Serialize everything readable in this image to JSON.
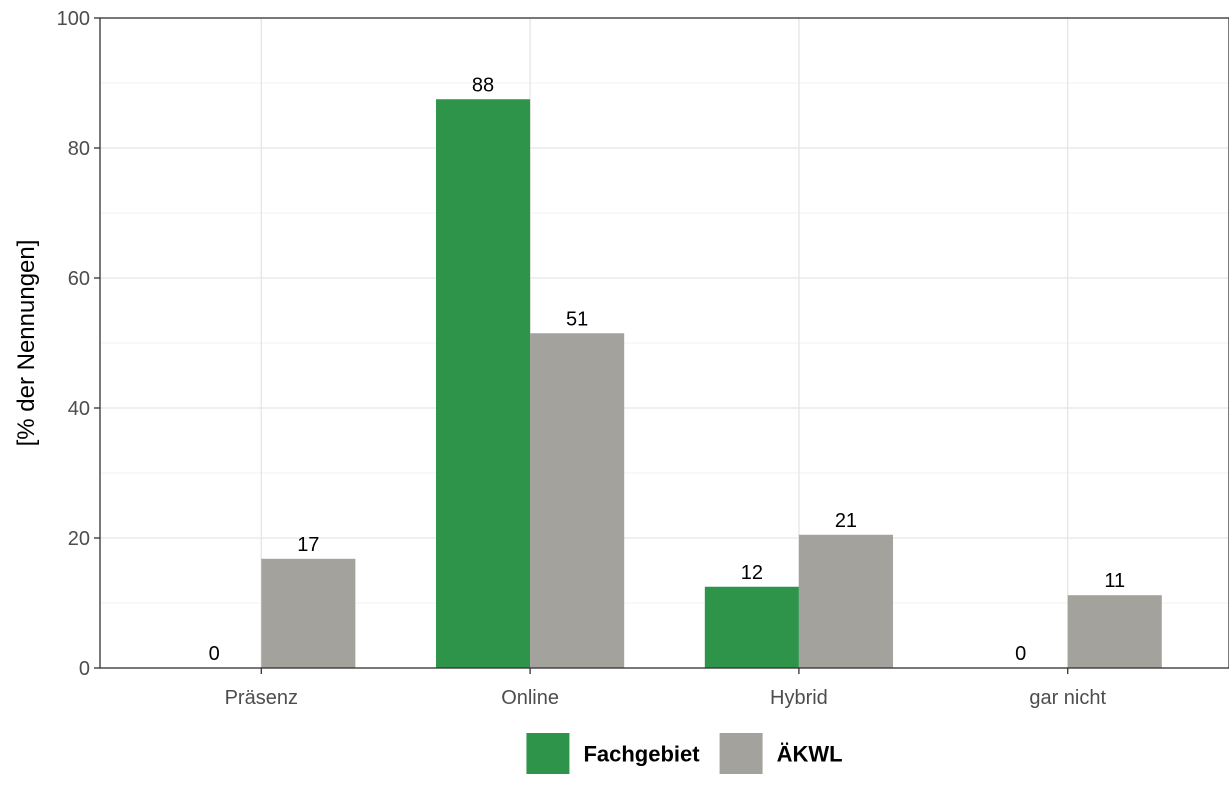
{
  "chart_data": {
    "type": "bar",
    "categories": [
      "Präsenz",
      "Online",
      "Hybrid",
      "gar nicht"
    ],
    "series": [
      {
        "name": "Fachgebiet",
        "values": [
          0,
          87.5,
          12.5,
          0
        ],
        "labels": [
          "0",
          "88",
          "12",
          "0"
        ],
        "color": "#2e944a"
      },
      {
        "name": "ÄKWL",
        "values": [
          16.8,
          51.5,
          20.5,
          11.2
        ],
        "labels": [
          "17",
          "51",
          "21",
          "11"
        ],
        "color": "#a4a29c"
      }
    ],
    "ylabel": "[% der Nennungen]",
    "ylim": [
      0,
      100
    ],
    "yticks": [
      "0",
      "20",
      "40",
      "60",
      "80",
      "100"
    ],
    "grid": true,
    "legend_position": "bottom"
  }
}
